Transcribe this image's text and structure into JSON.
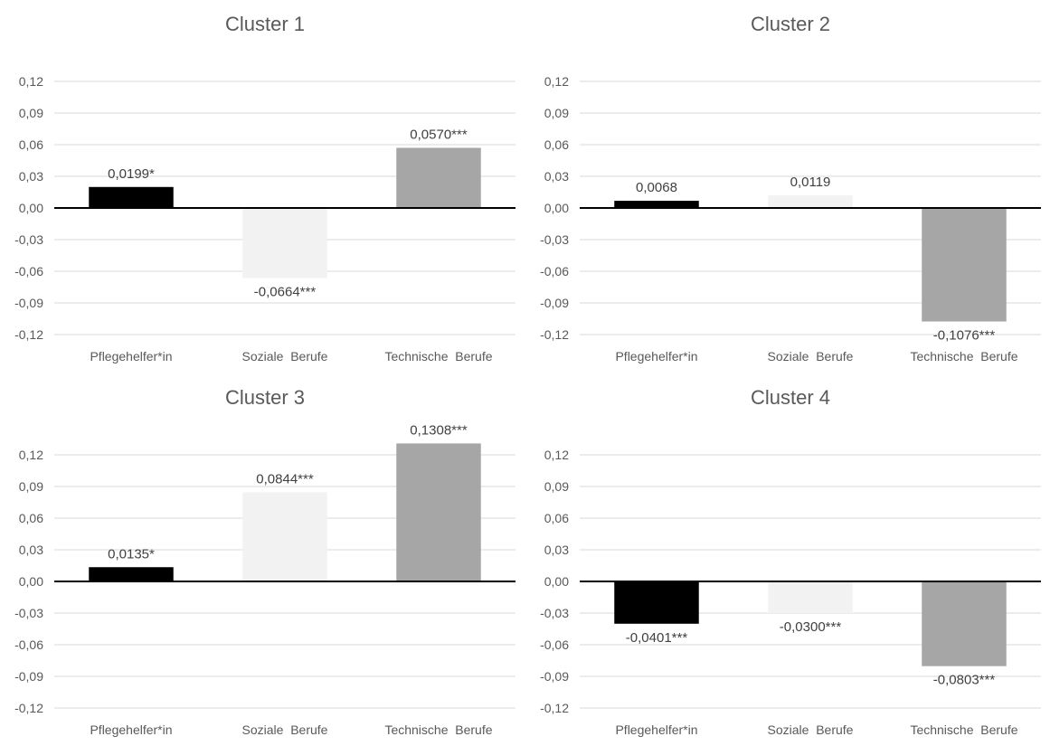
{
  "chart_data": [
    {
      "type": "bar",
      "title": "Cluster 1",
      "categories": [
        "Pflegehelfer*in",
        "Soziale  Berufe",
        "Technische  Berufe"
      ],
      "values": [
        0.0199,
        -0.0664,
        0.057
      ],
      "data_labels": [
        "0,0199*",
        "-0,0664***",
        "0,0570***"
      ],
      "ylim": [
        -0.12,
        0.12
      ],
      "yticks": [
        "0,12",
        "0,09",
        "0,06",
        "0,03",
        "0,00",
        "-0,03",
        "-0,06",
        "-0,09",
        "-0,12"
      ],
      "grid": true
    },
    {
      "type": "bar",
      "title": "Cluster 2",
      "categories": [
        "Pflegehelfer*in",
        "Soziale  Berufe",
        "Technische  Berufe"
      ],
      "values": [
        0.0068,
        0.0119,
        -0.1076
      ],
      "data_labels": [
        "0,0068",
        "0,0119",
        "-0,1076***"
      ],
      "ylim": [
        -0.12,
        0.12
      ],
      "yticks": [
        "0,12",
        "0,09",
        "0,06",
        "0,03",
        "0,00",
        "-0,03",
        "-0,06",
        "-0,09",
        "-0,12"
      ],
      "grid": true
    },
    {
      "type": "bar",
      "title": "Cluster 3",
      "categories": [
        "Pflegehelfer*in",
        "Soziale  Berufe",
        "Technische  Berufe"
      ],
      "values": [
        0.0135,
        0.0844,
        0.1308
      ],
      "data_labels": [
        "0,0135*",
        "0,0844***",
        "0,1308***"
      ],
      "ylim": [
        -0.12,
        0.12
      ],
      "yticks": [
        "0,12",
        "0,09",
        "0,06",
        "0,03",
        "0,00",
        "-0,03",
        "-0,06",
        "-0,09",
        "-0,12"
      ],
      "grid": true
    },
    {
      "type": "bar",
      "title": "Cluster 4",
      "categories": [
        "Pflegehelfer*in",
        "Soziale  Berufe",
        "Technische  Berufe"
      ],
      "values": [
        -0.0401,
        -0.03,
        -0.0803
      ],
      "data_labels": [
        "-0,0401***",
        "-0,0300***",
        "-0,0803***"
      ],
      "ylim": [
        -0.12,
        0.12
      ],
      "yticks": [
        "0,12",
        "0,09",
        "0,06",
        "0,03",
        "0,00",
        "-0,03",
        "-0,06",
        "-0,09",
        "-0,12"
      ],
      "grid": true
    }
  ],
  "colors": {
    "bar_colors": [
      "#000000",
      "#f2f2f2",
      "#a6a6a6"
    ],
    "grid": "#d9d9d9",
    "text": "#595959"
  }
}
